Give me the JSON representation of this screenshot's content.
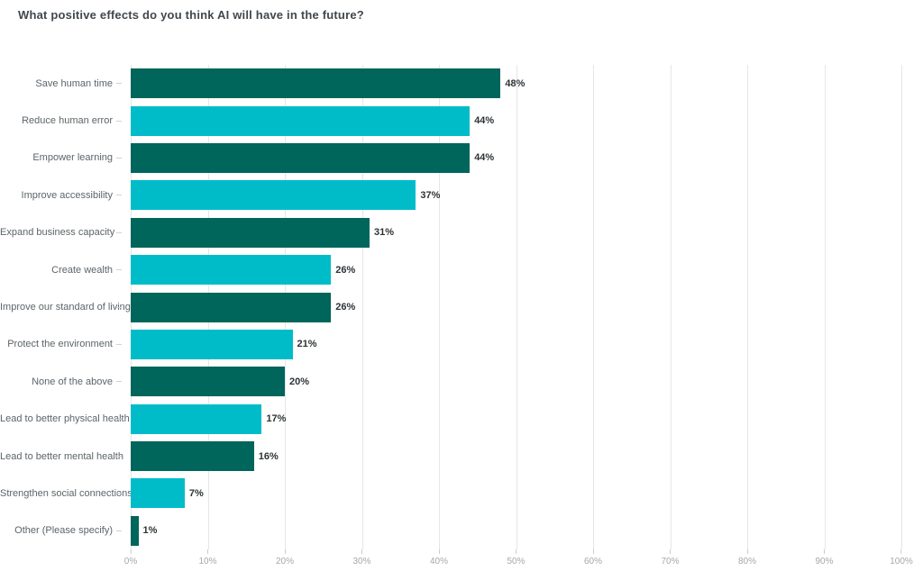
{
  "chart_data": {
    "type": "bar",
    "orientation": "horizontal",
    "title": "What positive effects do you think AI will have in the future?",
    "categories": [
      "Save human time",
      "Reduce human error",
      "Empower learning",
      "Improve accessibility",
      "Expand business capacity",
      "Create wealth",
      "Improve our standard of living",
      "Protect the environment",
      "None of the above",
      "Lead to better physical health",
      "Lead to better mental health",
      "Strengthen social connections",
      "Other (Please specify)"
    ],
    "values": [
      48,
      44,
      44,
      37,
      31,
      26,
      26,
      21,
      20,
      17,
      16,
      7,
      1
    ],
    "value_labels": [
      "48%",
      "44%",
      "44%",
      "37%",
      "31%",
      "26%",
      "26%",
      "21%",
      "20%",
      "17%",
      "16%",
      "7%",
      "1%"
    ],
    "xlabel": "",
    "ylabel": "",
    "xlim": [
      0,
      100
    ],
    "x_tick_step": 10,
    "x_tick_labels": [
      "0%",
      "10%",
      "20%",
      "30%",
      "40%",
      "50%",
      "60%",
      "70%",
      "80%",
      "90%",
      "100%"
    ],
    "grid": "vertical",
    "legend": "none",
    "colors": {
      "bar_odd_rows": "#00655A",
      "bar_even_rows": "#00BCC9",
      "gridline": "#E4E6E8",
      "title_text": "#41474C",
      "category_text": "#5D6468",
      "value_text": "#2E3336",
      "tick_text": "#A3A8AC",
      "background": "#FFFFFF"
    }
  }
}
